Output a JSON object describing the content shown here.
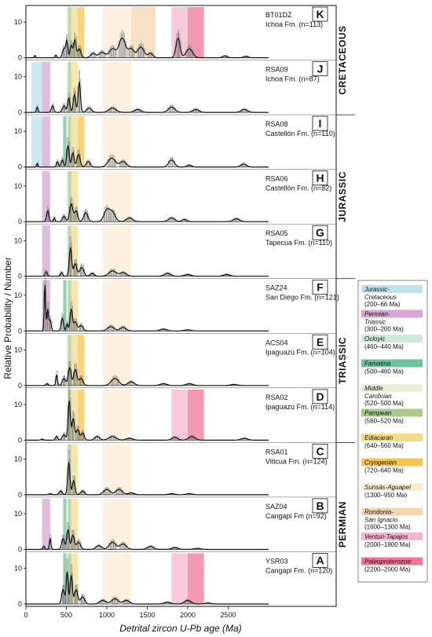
{
  "chart_data": {
    "type": "area",
    "xlabel": "Detrital zircon U-Pb age (Ma)",
    "ylabel": "Relative Probability / Number",
    "xlim": [
      0,
      3000
    ],
    "x_ticks": [
      0,
      500,
      1000,
      1500,
      2000,
      2500
    ],
    "ylim": [
      0,
      14
    ],
    "y_ticks": [
      0,
      10
    ],
    "grid": false,
    "legend_position": "right",
    "periods": [
      {
        "name": "CRETACEOUS",
        "panels": [
          "K",
          "J"
        ]
      },
      {
        "name": "JURASSIC",
        "panels": [
          "I",
          "H",
          "G"
        ]
      },
      {
        "name": "TRIASSIC",
        "panels": [
          "F",
          "E",
          "D"
        ]
      },
      {
        "name": "PERMIAN",
        "panels": [
          "C",
          "B",
          "A"
        ]
      }
    ],
    "bands": [
      {
        "key": "jc",
        "name1": "Jurassic-",
        "name2": "Cretaceous",
        "range": "(200–66 Ma)",
        "from": 66,
        "to": 200,
        "color": "#bfe3ea"
      },
      {
        "key": "pt",
        "name1": "Permian-",
        "name2": "Triassic",
        "range": "(300–200 Ma)",
        "from": 200,
        "to": 300,
        "color": "#d7a6d6"
      },
      {
        "key": "oc",
        "name1": "Ocloyic",
        "name2": "",
        "range": "(460–440 Ma)",
        "from": 440,
        "to": 460,
        "color": "#cfead8"
      },
      {
        "key": "fa",
        "name1": "Famatina",
        "name2": "",
        "range": "(500–460 Ma)",
        "from": 460,
        "to": 500,
        "color": "#6fc29a"
      },
      {
        "key": "mc",
        "name1": "Middle",
        "name2": "Cambrian",
        "range": "(520–500 Ma)",
        "from": 500,
        "to": 520,
        "color": "#e8efd6"
      },
      {
        "key": "pa",
        "name1": "Pampean",
        "name2": "",
        "range": "(560–520 Ma)",
        "from": 520,
        "to": 560,
        "color": "#a8c88c"
      },
      {
        "key": "ed",
        "name1": "Ediacaran",
        "name2": "",
        "range": "(640–560 Ma)",
        "from": 560,
        "to": 640,
        "color": "#f5dc8c"
      },
      {
        "key": "cr",
        "name1": "Cryogenian",
        "name2": "",
        "range": "(720–640 Ma)",
        "from": 640,
        "to": 720,
        "color": "#f5c350"
      },
      {
        "key": "sa",
        "name1": "Sunsás-Aguapeí",
        "name2": "",
        "range": "(1300–950 Ma)",
        "from": 950,
        "to": 1300,
        "color": "#f9ecd3"
      },
      {
        "key": "rs",
        "name1": "Rondonia-",
        "name2": "San Ignacio",
        "range": "(1600–1300 Ma)",
        "from": 1300,
        "to": 1600,
        "color": "#f6d6b0"
      },
      {
        "key": "vt",
        "name1": "Venturi-Tapajos",
        "name2": "",
        "range": "(2000–1800 Ma)",
        "from": 1800,
        "to": 2000,
        "color": "#f6b6d0"
      },
      {
        "key": "pp",
        "name1": "Paleoproterozoic",
        "name2": "",
        "range": "(2200–2000 Ma)",
        "from": 2000,
        "to": 2200,
        "color": "#f07896"
      }
    ],
    "panels": [
      {
        "letter": "K",
        "sample": "BT01DZ",
        "unit": "Ichoa Fm. (n=113)",
        "bands": [
          "mc",
          "pa",
          "ed",
          "cr",
          "sa",
          "rs",
          "vt",
          "pp"
        ],
        "peaks": [
          [
            110,
            0.6,
            8
          ],
          [
            370,
            0.7,
            10
          ],
          [
            470,
            2.5,
            18
          ],
          [
            505,
            4.5,
            12
          ],
          [
            560,
            3.5,
            15
          ],
          [
            605,
            5,
            15
          ],
          [
            660,
            2.5,
            20
          ],
          [
            830,
            1.2,
            30
          ],
          [
            940,
            1.5,
            40
          ],
          [
            1070,
            2.5,
            40
          ],
          [
            1190,
            5.5,
            40
          ],
          [
            1300,
            2.5,
            35
          ],
          [
            1420,
            3,
            40
          ],
          [
            1540,
            1.2,
            30
          ],
          [
            1880,
            5.5,
            25
          ],
          [
            2020,
            2.5,
            40
          ],
          [
            2460,
            0.5,
            30
          ],
          [
            2720,
            0.4,
            30
          ]
        ]
      },
      {
        "letter": "J",
        "sample": "RSA09",
        "unit": "Ichoa Fm. (n=87)",
        "bands": [
          "jc",
          "pt",
          "mc",
          "pa",
          "ed",
          "sa"
        ],
        "peaks": [
          [
            140,
            1.5,
            10
          ],
          [
            330,
            1.8,
            15
          ],
          [
            470,
            1.8,
            20
          ],
          [
            530,
            4,
            14
          ],
          [
            600,
            5,
            15
          ],
          [
            660,
            8.5,
            14
          ],
          [
            780,
            1.2,
            30
          ],
          [
            1070,
            1.2,
            45
          ],
          [
            1380,
            0.8,
            40
          ],
          [
            1800,
            1.5,
            40
          ],
          [
            2100,
            0.8,
            40
          ],
          [
            2700,
            0.8,
            40
          ]
        ]
      },
      {
        "letter": "I",
        "sample": "RSA08",
        "unit": "Castellón Fm. (n=110)",
        "bands": [
          "jc",
          "pt",
          "fa",
          "mc",
          "pa",
          "ed",
          "cr",
          "sa"
        ],
        "peaks": [
          [
            140,
            1,
            8
          ],
          [
            390,
            1.5,
            12
          ],
          [
            450,
            2,
            15
          ],
          [
            520,
            6,
            15
          ],
          [
            580,
            4,
            15
          ],
          [
            650,
            3.5,
            20
          ],
          [
            770,
            1.5,
            25
          ],
          [
            1060,
            2.5,
            45
          ],
          [
            1200,
            1.5,
            40
          ],
          [
            1800,
            2,
            35
          ],
          [
            2020,
            0.5,
            30
          ],
          [
            2690,
            0.8,
            35
          ]
        ]
      },
      {
        "letter": "H",
        "sample": "RSA06",
        "unit": "Castellón Fm. (n=82)",
        "bands": [
          "pt",
          "mc",
          "pa",
          "ed",
          "sa"
        ],
        "peaks": [
          [
            270,
            3,
            15
          ],
          [
            350,
            1,
            10
          ],
          [
            470,
            1.5,
            20
          ],
          [
            560,
            5,
            20
          ],
          [
            620,
            3,
            20
          ],
          [
            740,
            2.5,
            25
          ],
          [
            1000,
            3.2,
            35
          ],
          [
            1070,
            2.5,
            35
          ],
          [
            1280,
            1,
            40
          ],
          [
            1800,
            1,
            40
          ],
          [
            1960,
            0.6,
            30
          ],
          [
            2600,
            0.8,
            40
          ]
        ]
      },
      {
        "letter": "G",
        "sample": "RSA05",
        "unit": "Tapecua Fm. (n=110)",
        "bands": [
          "pt",
          "mc",
          "pa",
          "ed",
          "sa"
        ],
        "peaks": [
          [
            250,
            1.2,
            15
          ],
          [
            440,
            1,
            15
          ],
          [
            550,
            8,
            15
          ],
          [
            610,
            3.5,
            20
          ],
          [
            690,
            2.5,
            25
          ],
          [
            820,
            0.8,
            25
          ],
          [
            1070,
            1.5,
            45
          ],
          [
            1200,
            1,
            40
          ],
          [
            1750,
            0.8,
            40
          ],
          [
            2000,
            0.5,
            40
          ],
          [
            2480,
            0.5,
            40
          ]
        ]
      },
      {
        "letter": "F",
        "sample": "SAZ24",
        "unit": "San Diego Fm. (n=121)",
        "bands": [
          "pt",
          "fa",
          "mc",
          "pa",
          "ed",
          "sa"
        ],
        "peaks": [
          [
            235,
            13,
            9
          ],
          [
            270,
            6,
            10
          ],
          [
            300,
            3,
            12
          ],
          [
            450,
            3.5,
            15
          ],
          [
            510,
            2,
            10
          ],
          [
            560,
            6,
            15
          ],
          [
            610,
            2.5,
            20
          ],
          [
            680,
            1.5,
            25
          ],
          [
            1050,
            1.2,
            40
          ],
          [
            1200,
            1,
            35
          ],
          [
            1700,
            0.5,
            40
          ],
          [
            2000,
            0.3,
            40
          ]
        ]
      },
      {
        "letter": "E",
        "sample": "ACS04",
        "unit": "Ipaguazú Fm. (n=104)",
        "bands": [
          "mc",
          "pa",
          "ed",
          "cr",
          "sa"
        ],
        "peaks": [
          [
            260,
            0.5,
            15
          ],
          [
            380,
            3,
            10
          ],
          [
            470,
            2,
            20
          ],
          [
            540,
            5,
            18
          ],
          [
            610,
            4.5,
            20
          ],
          [
            680,
            2,
            25
          ],
          [
            1100,
            2,
            45
          ],
          [
            1300,
            1,
            40
          ],
          [
            1700,
            0.5,
            40
          ],
          [
            2020,
            0.5,
            40
          ],
          [
            2570,
            0.3,
            40
          ]
        ]
      },
      {
        "letter": "D",
        "sample": "RSA02",
        "unit": "Ipaguazú Fm. (n=114)",
        "bands": [
          "mc",
          "pa",
          "ed",
          "cr",
          "sa",
          "vt",
          "pp"
        ],
        "peaks": [
          [
            200,
            0.3,
            15
          ],
          [
            380,
            1,
            15
          ],
          [
            470,
            1.5,
            20
          ],
          [
            535,
            11,
            14
          ],
          [
            585,
            6,
            16
          ],
          [
            640,
            3,
            18
          ],
          [
            700,
            2,
            20
          ],
          [
            880,
            1,
            30
          ],
          [
            1070,
            1,
            45
          ],
          [
            1280,
            0.5,
            40
          ],
          [
            1840,
            0.8,
            35
          ],
          [
            2050,
            1,
            40
          ],
          [
            2700,
            0.5,
            40
          ]
        ]
      },
      {
        "letter": "C",
        "sample": "RSA01",
        "unit": "Viticua Fm. (n=124)",
        "bands": [
          "mc",
          "pa",
          "ed",
          "sa"
        ],
        "peaks": [
          [
            300,
            0.3,
            20
          ],
          [
            430,
            1,
            20
          ],
          [
            530,
            9,
            14
          ],
          [
            590,
            4,
            16
          ],
          [
            700,
            1,
            25
          ],
          [
            1000,
            1.5,
            40
          ],
          [
            1150,
            1.5,
            40
          ],
          [
            1300,
            0.5,
            40
          ],
          [
            1800,
            0.3,
            40
          ],
          [
            2020,
            0.3,
            40
          ]
        ]
      },
      {
        "letter": "B",
        "sample": "SAZ04",
        "unit": "Cangapi Fm (n=92)",
        "bands": [
          "pt",
          "fa",
          "mc",
          "pa",
          "ed",
          "sa"
        ],
        "peaks": [
          [
            220,
            0.8,
            12
          ],
          [
            300,
            3,
            10
          ],
          [
            460,
            3,
            18
          ],
          [
            520,
            5.5,
            15
          ],
          [
            580,
            4,
            18
          ],
          [
            650,
            2,
            25
          ],
          [
            900,
            1,
            35
          ],
          [
            1070,
            2,
            40
          ],
          [
            1200,
            1.5,
            40
          ],
          [
            1540,
            0.8,
            40
          ],
          [
            1840,
            0.5,
            40
          ],
          [
            2120,
            0.3,
            40
          ]
        ]
      },
      {
        "letter": "A",
        "sample": "YSR03",
        "unit": "Cangapi Fm. (n=120)",
        "bands": [
          "fa",
          "mc",
          "pa",
          "ed",
          "sa",
          "vt",
          "pp"
        ],
        "peaks": [
          [
            460,
            4,
            18
          ],
          [
            510,
            9,
            12
          ],
          [
            560,
            8,
            14
          ],
          [
            620,
            4,
            20
          ],
          [
            700,
            2,
            25
          ],
          [
            950,
            1,
            40
          ],
          [
            1100,
            1.5,
            40
          ],
          [
            1240,
            1,
            40
          ],
          [
            1750,
            0.5,
            40
          ],
          [
            2000,
            1,
            40
          ],
          [
            2250,
            0.3,
            40
          ]
        ]
      }
    ]
  }
}
